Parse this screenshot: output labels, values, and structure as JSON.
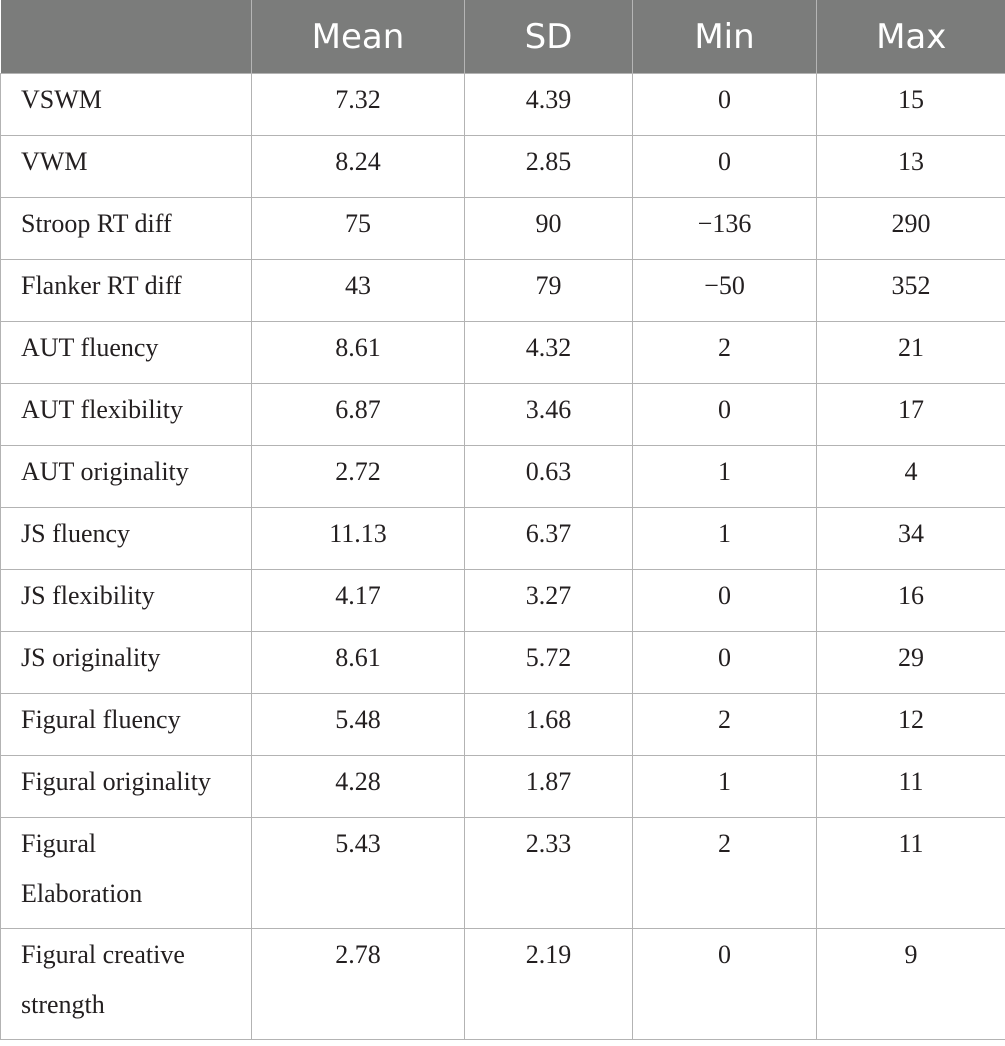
{
  "header": [
    "",
    "Mean",
    "SD",
    "Min",
    "Max"
  ],
  "rows": [
    {
      "label": "VSWM",
      "mean": "7.32",
      "sd": "4.39",
      "min": "0",
      "max": "15"
    },
    {
      "label": "VWM",
      "mean": "8.24",
      "sd": "2.85",
      "min": "0",
      "max": "13"
    },
    {
      "label": "Stroop RT diff",
      "mean": "75",
      "sd": "90",
      "min": "−136",
      "max": "290"
    },
    {
      "label": "Flanker RT diff",
      "mean": "43",
      "sd": "79",
      "min": "−50",
      "max": "352"
    },
    {
      "label": "AUT fluency",
      "mean": "8.61",
      "sd": "4.32",
      "min": "2",
      "max": "21"
    },
    {
      "label": "AUT flexibility",
      "mean": "6.87",
      "sd": "3.46",
      "min": "0",
      "max": "17"
    },
    {
      "label": "AUT originality",
      "mean": "2.72",
      "sd": "0.63",
      "min": "1",
      "max": "4"
    },
    {
      "label": "JS fluency",
      "mean": "11.13",
      "sd": "6.37",
      "min": "1",
      "max": "34"
    },
    {
      "label": "JS flexibility",
      "mean": "4.17",
      "sd": "3.27",
      "min": "0",
      "max": "16"
    },
    {
      "label": "JS originality",
      "mean": "8.61",
      "sd": "5.72",
      "min": "0",
      "max": "29"
    },
    {
      "label": "Figural fluency",
      "mean": "5.48",
      "sd": "1.68",
      "min": "2",
      "max": "12"
    },
    {
      "label": "Figural originality",
      "mean": "4.28",
      "sd": "1.87",
      "min": "1",
      "max": "11"
    },
    {
      "label": "Figural\nElaboration",
      "mean": "5.43",
      "sd": "2.33",
      "min": "2",
      "max": "11"
    },
    {
      "label": "Figural creative\nstrength",
      "mean": "2.78",
      "sd": "2.19",
      "min": "0",
      "max": "9"
    }
  ]
}
